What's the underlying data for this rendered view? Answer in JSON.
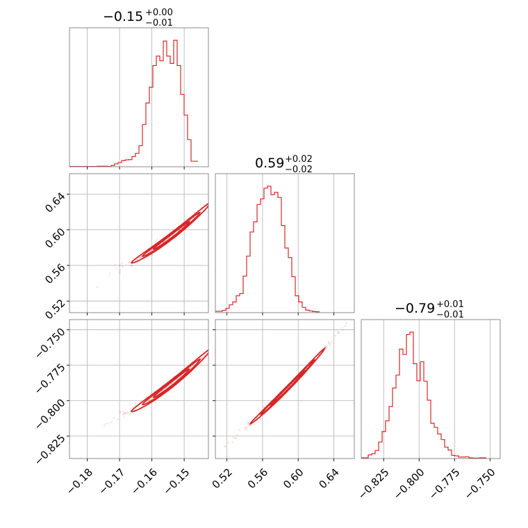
{
  "chart_data": {
    "type": "corner",
    "parameters": [
      {
        "median": -0.15,
        "err_plus": 0.0,
        "err_minus": 0.01,
        "title": {
          "main": "−0.15",
          "sup": "+0.00",
          "sub": "−0.01"
        },
        "range": [
          -0.1855,
          -0.1425
        ],
        "ticks": [
          -0.18,
          -0.17,
          -0.16,
          -0.15
        ],
        "tick_labels": [
          "−0.18",
          "−0.17",
          "−0.16",
          "−0.15"
        ],
        "hist": {
          "bin_edges_start": -0.1855,
          "bin_width": 0.001075,
          "counts": [
            1,
            1,
            1,
            1,
            1,
            1,
            1,
            1,
            2,
            2,
            2,
            1,
            5,
            11,
            16,
            23,
            26,
            27,
            39,
            51,
            80,
            160,
            242,
            302,
            384,
            420,
            402,
            477,
            420,
            392,
            480,
            384,
            275,
            196,
            103,
            21,
            21
          ]
        }
      },
      {
        "median": 0.59,
        "err_plus": 0.02,
        "err_minus": 0.02,
        "title": {
          "main": "0.59",
          "sup": "+0.02",
          "sub": "−0.02"
        },
        "range": [
          0.507,
          0.663
        ],
        "ticks": [
          0.52,
          0.56,
          0.6,
          0.64
        ],
        "tick_labels": [
          "0.52",
          "0.56",
          "0.60",
          "0.64"
        ],
        "hist": {
          "bin_edges_start": 0.507,
          "bin_width": 0.0039,
          "counts": [
            5,
            5,
            8,
            15,
            28,
            38,
            60,
            68,
            130,
            201,
            287,
            323,
            385,
            405,
            443,
            450,
            420,
            428,
            410,
            310,
            230,
            196,
            128,
            60,
            38,
            19,
            9,
            6,
            4,
            3
          ]
        }
      },
      {
        "median": -0.79,
        "err_plus": 0.01,
        "err_minus": 0.01,
        "title": {
          "main": "−0.79",
          "sup": "+0.01",
          "sub": "−0.01"
        },
        "range": [
          -0.8408,
          -0.7428
        ],
        "ticks": [
          -0.825,
          -0.8,
          -0.775,
          -0.75
        ],
        "tick_labels": [
          "−0.825",
          "−0.800",
          "−0.775",
          "−0.750"
        ],
        "hist": {
          "bin_edges_start": -0.8408,
          "bin_width": 0.00245,
          "counts": [
            3,
            3,
            15,
            20,
            33,
            68,
            111,
            155,
            214,
            290,
            343,
            450,
            428,
            510,
            520,
            390,
            320,
            398,
            318,
            240,
            145,
            128,
            101,
            78,
            47,
            35,
            13,
            11,
            6,
            6,
            7,
            3,
            2,
            2,
            3,
            3
          ]
        }
      }
    ],
    "grid": true,
    "color": "#d62728"
  }
}
